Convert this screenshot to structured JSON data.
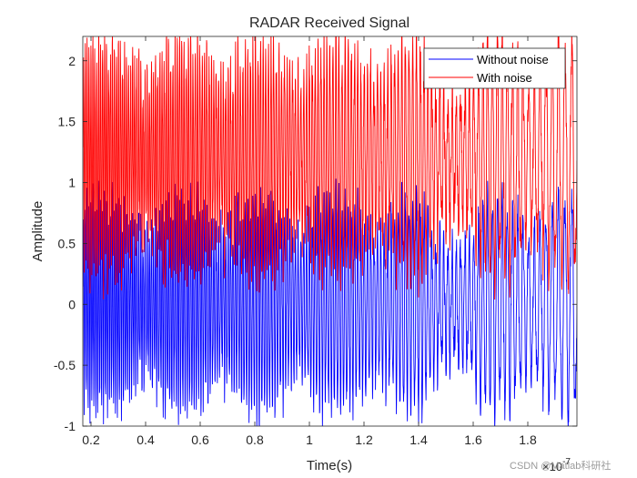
{
  "chart_data": {
    "type": "line",
    "title": "RADAR Received Signal",
    "xlabel": "Time(s)",
    "ylabel": "Amplitude",
    "x_multiplier": "×10",
    "x_multiplier_exp": "-7",
    "xlim": [
      0.17,
      1.98
    ],
    "ylim": [
      -1,
      2.2
    ],
    "xticks": [
      0.2,
      0.4,
      0.6,
      0.8,
      1,
      1.2,
      1.4,
      1.6,
      1.8
    ],
    "yticks": [
      -1,
      -0.5,
      0,
      0.5,
      1,
      1.5,
      2
    ],
    "xtick_labels": [
      "0.2",
      "0.4",
      "0.6",
      "0.8",
      "1",
      "1.2",
      "1.4",
      "1.6",
      "1.8"
    ],
    "ytick_labels": [
      "-1",
      "-0.5",
      "0",
      "0.5",
      "1",
      "1.5",
      "2"
    ],
    "grid": false,
    "legend_position": "top-right",
    "series": [
      {
        "name": "Without noise",
        "color": "#0000ff",
        "offset": 0,
        "description_values": "dense oscillation centred at 0, amplitude roughly 0.5 to 0.9"
      },
      {
        "name": "With noise",
        "color": "#ff0000",
        "offset": 1.2,
        "description_values": "same oscillation shifted up by about 1.2, amplitude roughly 0.5 to 1.0"
      }
    ]
  },
  "watermark": "CSDN @Matlab科研社"
}
